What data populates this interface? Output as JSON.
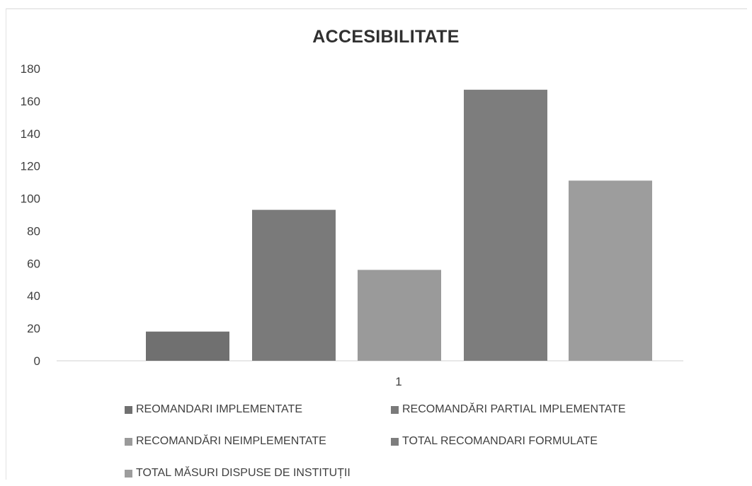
{
  "chart_data": {
    "type": "bar",
    "title": "ACCESIBILITATE",
    "categories": [
      "1"
    ],
    "series": [
      {
        "name": "REOMANDARI IMPLEMENTATE",
        "values": [
          18
        ],
        "color": "#707070"
      },
      {
        "name": "RECOMANDĂRI PARTIAL IMPLEMENTATE",
        "values": [
          93
        ],
        "color": "#7a7a7a"
      },
      {
        "name": "RECOMANDĂRI NEIMPLEMENTATE",
        "values": [
          56
        ],
        "color": "#9a9a9a"
      },
      {
        "name": "TOTAL RECOMANDARI FORMULATE",
        "values": [
          167
        ],
        "color": "#7d7d7d"
      },
      {
        "name": "TOTAL MĂSURI DISPUSE DE INSTITUȚII",
        "values": [
          111
        ],
        "color": "#9d9d9d"
      }
    ],
    "ylim": [
      0,
      180
    ],
    "yticks": [
      "0",
      "20",
      "40",
      "60",
      "80",
      "100",
      "120",
      "140",
      "160",
      "180"
    ],
    "xlabel": "",
    "ylabel": "",
    "grid": false,
    "legend_position": "bottom"
  }
}
